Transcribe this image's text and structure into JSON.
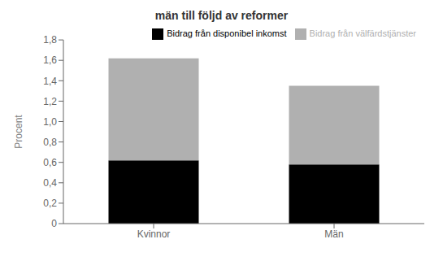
{
  "chart_data": {
    "type": "bar",
    "title": "män till följd av reformer",
    "categories": [
      "Kvinnor",
      "Män"
    ],
    "series": [
      {
        "name": "Bidrag från disponibel inkomst",
        "color": "#000000",
        "values": [
          0.62,
          0.58
        ]
      },
      {
        "name": "Bidrag från välfärdstjänster",
        "color": "#b0b0b0",
        "values": [
          1.0,
          0.77
        ]
      }
    ],
    "stacked": true,
    "ylabel": "Procent",
    "ylim": [
      0,
      1.8
    ],
    "yticks": [
      0,
      {
        "value": 0.2,
        "label": "0,2"
      },
      {
        "value": 0.4,
        "label": "0,4"
      },
      {
        "value": 0.6,
        "label": "0,6"
      },
      {
        "value": 0.8,
        "label": "0,8"
      },
      {
        "value": 1.0,
        "label": "1,0"
      },
      {
        "value": 1.2,
        "label": "1,2"
      },
      {
        "value": 1.4,
        "label": "1,4"
      },
      {
        "value": 1.6,
        "label": "1,6"
      },
      {
        "value": 1.8,
        "label": "1,8"
      }
    ],
    "grid": false,
    "legend": "upper right"
  }
}
